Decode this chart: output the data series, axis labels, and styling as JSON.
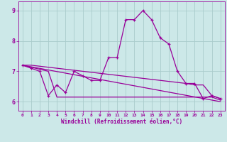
{
  "xlabel": "Windchill (Refroidissement éolien,°C)",
  "hours": [
    0,
    1,
    2,
    3,
    4,
    5,
    6,
    7,
    8,
    9,
    10,
    11,
    12,
    13,
    14,
    15,
    16,
    17,
    18,
    19,
    20,
    21,
    22,
    23
  ],
  "main_line": [
    7.2,
    7.1,
    7.0,
    6.2,
    6.55,
    6.3,
    7.0,
    6.85,
    6.7,
    6.7,
    7.45,
    7.45,
    8.7,
    8.7,
    9.0,
    8.7,
    8.1,
    7.9,
    7.0,
    6.6,
    6.6,
    6.1,
    6.2,
    6.1
  ],
  "trend_line_x": [
    0,
    23
  ],
  "trend_line_y": [
    7.2,
    6.0
  ],
  "min_line_x": [
    0,
    3,
    4,
    22,
    23
  ],
  "min_line_y": [
    7.2,
    7.0,
    6.15,
    6.15,
    6.05
  ],
  "max_line_x": [
    0,
    1,
    19,
    20,
    21,
    22,
    23
  ],
  "max_line_y": [
    7.2,
    7.2,
    6.6,
    6.55,
    6.55,
    6.2,
    6.1
  ],
  "line_color": "#990099",
  "bg_color": "#cce8e8",
  "grid_color": "#aacccc",
  "ylim": [
    5.7,
    9.3
  ],
  "yticks": [
    6,
    7,
    8,
    9
  ],
  "xlim": [
    -0.5,
    23.5
  ]
}
